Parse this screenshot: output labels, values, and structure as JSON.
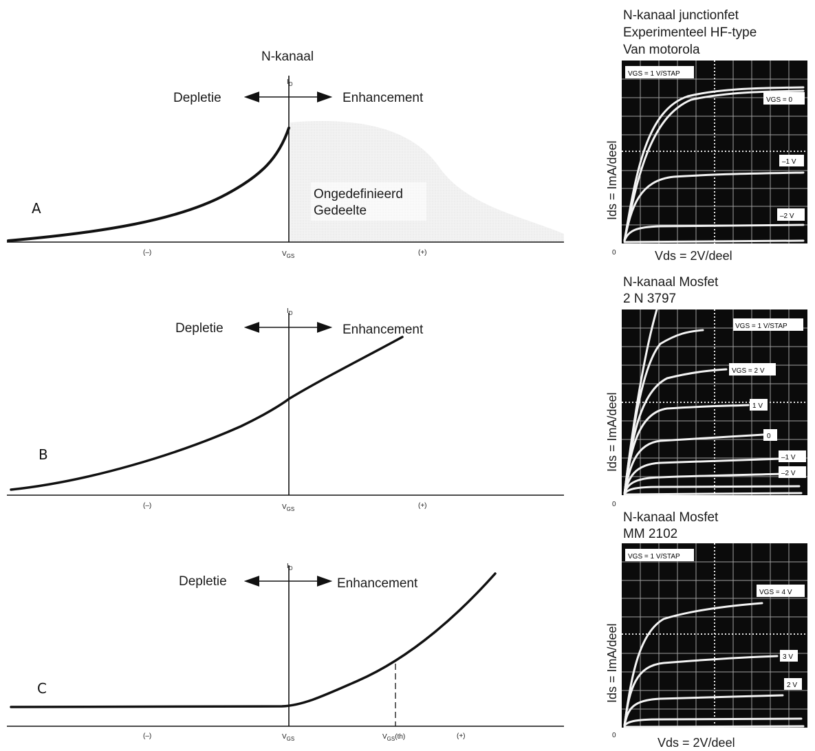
{
  "header": {
    "title": "N-kanaal"
  },
  "common": {
    "id_label": "I",
    "id_sub": "D",
    "vgs_label": "V",
    "vgs_sub": "GS",
    "minus": "(–)",
    "plus": "(+)",
    "depletion": "Depletie",
    "enhancement": "Enhancement"
  },
  "panels": [
    {
      "letter": "A",
      "undefined_line1": "Ongedefinieerd",
      "undefined_line2": "Gedeelte"
    },
    {
      "letter": "B"
    },
    {
      "letter": "C",
      "vth_label": "V",
      "vth_sub": "GS",
      "vth_suffix": "(th)"
    }
  ],
  "scopes": [
    {
      "title_lines": [
        "N-kanaal junctionfet",
        "Experimenteel HF-type",
        "Van motorola"
      ],
      "ylabel": "Ids = ImA/deel",
      "xlabel": "Vds = 2V/deel",
      "origin": "0",
      "step_tag": "VGS = 1 V/STAP",
      "tags": [
        "VGS = 0",
        "–1 V",
        "–2 V"
      ]
    },
    {
      "title_lines": [
        "N-kanaal Mosfet",
        "2 N 3797"
      ],
      "ylabel": "Ids = ImA/deel",
      "xlabel": "",
      "origin": "0",
      "step_tag": "VGS = 1 V/STAP",
      "tags": [
        "VGS = 2 V",
        "1 V",
        "0",
        "–1 V",
        "–2 V"
      ]
    },
    {
      "title_lines": [
        "N-kanaal Mosfet",
        "MM 2102"
      ],
      "ylabel": "Ids = ImA/deel",
      "xlabel": "Vds = 2V/deel",
      "origin": "0",
      "step_tag": "VGS = 1 V/STAP",
      "tags": [
        "VGS = 4 V",
        "3 V",
        "2 V"
      ]
    }
  ],
  "colors": {
    "ink": "#111111",
    "screen": "#0b0b0b",
    "trace": "#f4f4f4",
    "shade": "#ececec"
  }
}
